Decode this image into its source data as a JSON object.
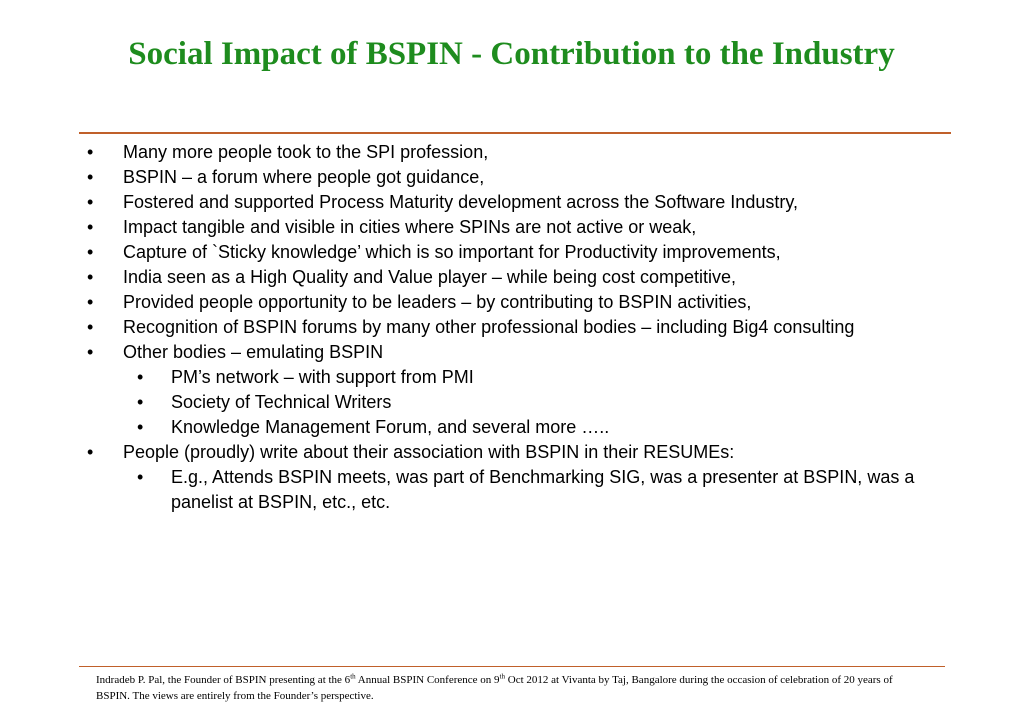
{
  "slide": {
    "title": "Social Impact of BSPIN - Contribution to the Industry",
    "bullet_marker": "•",
    "bullets": [
      {
        "level": 1,
        "text": "Many more people took to the SPI profession,"
      },
      {
        "level": 1,
        "text": "BSPIN – a forum where people got guidance,"
      },
      {
        "level": 1,
        "text": "Fostered and supported Process Maturity development across the Software Industry,"
      },
      {
        "level": 1,
        "text": "Impact tangible and visible in cities where SPINs are not active or weak,"
      },
      {
        "level": 1,
        "text": "Capture of `Sticky knowledge’ which is so important for Productivity improvements,"
      },
      {
        "level": 1,
        "text": "India seen as a High Quality and Value player – while being cost competitive,"
      },
      {
        "level": 1,
        "text": "Provided people opportunity to be leaders – by contributing to BSPIN activities,"
      },
      {
        "level": 1,
        "text": "Recognition of BSPIN forums by many other professional bodies – including Big4 consulting"
      },
      {
        "level": 1,
        "text": "Other bodies – emulating BSPIN"
      },
      {
        "level": 2,
        "text": "PM’s network – with support from PMI"
      },
      {
        "level": 2,
        "text": "Society of Technical Writers"
      },
      {
        "level": 2,
        "text": "Knowledge Management Forum, and several more ….."
      },
      {
        "level": 1,
        "text": "People (proudly) write about their association with BSPIN in their RESUMEs:"
      },
      {
        "level": 2,
        "text": "E.g., Attends BSPIN meets, was part of Benchmarking SIG, was a presenter at BSPIN, was a panelist at BSPIN, etc., etc."
      }
    ]
  },
  "footer": {
    "part1": "Indradeb P. Pal, the Founder of BSPIN presenting at the 6",
    "sup1": "th",
    "part2": " Annual BSPIN Conference on 9",
    "sup2": "th",
    "part3": " Oct 2012 at Vivanta by Taj, Bangalore during the occasion of celebration of 20 years of BSPIN. The views are entirely from the Founder’s perspective."
  },
  "colors": {
    "title": "#1e8c1e",
    "rule": "#c0602a",
    "text": "#000000",
    "background": "#ffffff"
  }
}
